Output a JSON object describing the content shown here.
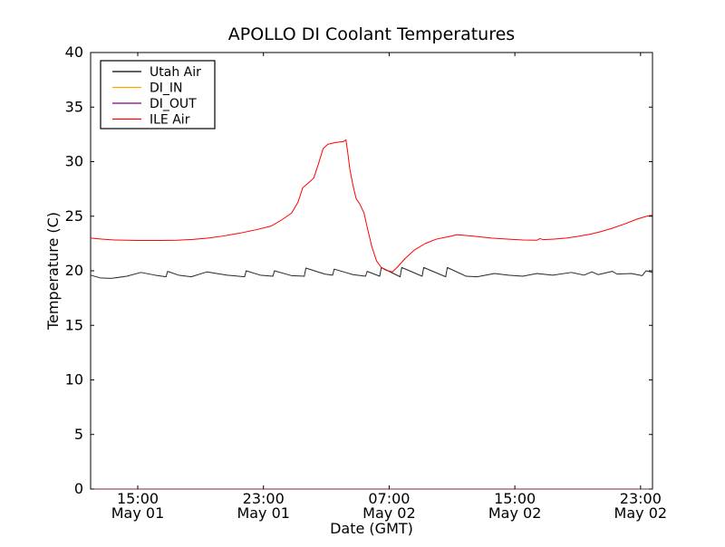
{
  "figure": {
    "background": "#ffffff",
    "frame_color": "#000000"
  },
  "chart_data": {
    "type": "line",
    "title": "APOLLO DI Coolant Temperatures",
    "xlabel": "Date (GMT)",
    "ylabel": "Temperature (C)",
    "grid": false,
    "legend_position": "upper left",
    "ylim": [
      0,
      40
    ],
    "yticks": [
      0,
      5,
      10,
      15,
      20,
      25,
      30,
      35,
      40
    ],
    "x_unit": "hours since May 01 12:00 GMT",
    "xlim": [
      0,
      35.76
    ],
    "xticks": [
      {
        "x": 3,
        "time": "15:00",
        "date": "May 01"
      },
      {
        "x": 11,
        "time": "23:00",
        "date": "May 01"
      },
      {
        "x": 19,
        "time": "07:00",
        "date": "May 02"
      },
      {
        "x": 27,
        "time": "15:00",
        "date": "May 02"
      },
      {
        "x": 35,
        "time": "23:00",
        "date": "May 02"
      }
    ],
    "series": [
      {
        "name": "Utah Air",
        "color": "#000000",
        "opacity": 0.85,
        "points": [
          [
            0,
            19.6
          ],
          [
            0.6,
            19.35
          ],
          [
            1.3,
            19.3
          ],
          [
            2.3,
            19.5
          ],
          [
            3.2,
            19.85
          ],
          [
            4.1,
            19.6
          ],
          [
            4.8,
            19.45
          ],
          [
            4.9,
            19.95
          ],
          [
            5.6,
            19.6
          ],
          [
            6.4,
            19.45
          ],
          [
            7.4,
            19.9
          ],
          [
            8.7,
            19.6
          ],
          [
            9.8,
            19.45
          ],
          [
            9.9,
            20.0
          ],
          [
            10.8,
            19.6
          ],
          [
            11.6,
            19.5
          ],
          [
            11.7,
            20.0
          ],
          [
            12.8,
            19.55
          ],
          [
            13.6,
            19.5
          ],
          [
            13.7,
            20.25
          ],
          [
            14.9,
            19.7
          ],
          [
            15.4,
            19.6
          ],
          [
            15.5,
            20.15
          ],
          [
            16.7,
            19.65
          ],
          [
            17.5,
            19.5
          ],
          [
            17.6,
            19.95
          ],
          [
            18.4,
            19.5
          ],
          [
            18.5,
            20.3
          ],
          [
            19.7,
            19.45
          ],
          [
            19.8,
            20.3
          ],
          [
            21.1,
            19.5
          ],
          [
            21.2,
            20.3
          ],
          [
            22.6,
            19.45
          ],
          [
            22.7,
            20.3
          ],
          [
            23.9,
            19.5
          ],
          [
            24.6,
            19.45
          ],
          [
            25.7,
            19.75
          ],
          [
            26.6,
            19.6
          ],
          [
            27.5,
            19.5
          ],
          [
            28.4,
            19.75
          ],
          [
            29.4,
            19.6
          ],
          [
            30.6,
            19.85
          ],
          [
            31.4,
            19.6
          ],
          [
            31.9,
            19.9
          ],
          [
            32.3,
            19.65
          ],
          [
            33.2,
            19.95
          ],
          [
            33.5,
            19.7
          ],
          [
            34.4,
            19.75
          ],
          [
            35.1,
            19.55
          ],
          [
            35.35,
            20.0
          ],
          [
            35.76,
            19.85
          ]
        ]
      },
      {
        "name": "DI_IN",
        "color": "#ffa500",
        "opacity": 0.45,
        "points": [
          [
            0,
            0
          ],
          [
            35.76,
            0
          ]
        ]
      },
      {
        "name": "DI_OUT",
        "color": "#800080",
        "opacity": 0.45,
        "points": [
          [
            0,
            0
          ],
          [
            35.76,
            0
          ]
        ]
      },
      {
        "name": "ILE Air",
        "color": "#ff0000",
        "opacity": 1,
        "points": [
          [
            0,
            23.0
          ],
          [
            0.7,
            22.9
          ],
          [
            1.5,
            22.82
          ],
          [
            3,
            22.78
          ],
          [
            4.5,
            22.78
          ],
          [
            5.5,
            22.8
          ],
          [
            6.5,
            22.87
          ],
          [
            7.5,
            23.0
          ],
          [
            8.5,
            23.2
          ],
          [
            9.5,
            23.45
          ],
          [
            10.5,
            23.75
          ],
          [
            11.5,
            24.1
          ],
          [
            12.2,
            24.7
          ],
          [
            12.8,
            25.3
          ],
          [
            13.2,
            26.3
          ],
          [
            13.5,
            27.6
          ],
          [
            13.9,
            28.1
          ],
          [
            14.2,
            28.5
          ],
          [
            14.5,
            29.8
          ],
          [
            14.8,
            31.2
          ],
          [
            15.1,
            31.6
          ],
          [
            15.6,
            31.75
          ],
          [
            16.1,
            31.85
          ],
          [
            16.25,
            32.0
          ],
          [
            16.35,
            31.0
          ],
          [
            16.5,
            29.3
          ],
          [
            16.7,
            27.8
          ],
          [
            16.9,
            26.6
          ],
          [
            17.1,
            26.2
          ],
          [
            17.4,
            25.3
          ],
          [
            17.6,
            24.0
          ],
          [
            17.9,
            22.2
          ],
          [
            18.2,
            20.9
          ],
          [
            18.5,
            20.3
          ],
          [
            18.8,
            20.05
          ],
          [
            19.2,
            19.9
          ],
          [
            19.5,
            20.3
          ],
          [
            20.0,
            21.1
          ],
          [
            20.6,
            21.9
          ],
          [
            21.3,
            22.5
          ],
          [
            22.0,
            22.9
          ],
          [
            22.7,
            23.1
          ],
          [
            23.3,
            23.3
          ],
          [
            23.8,
            23.25
          ],
          [
            24.5,
            23.15
          ],
          [
            25.5,
            23.0
          ],
          [
            26.5,
            22.9
          ],
          [
            27.5,
            22.82
          ],
          [
            28.4,
            22.8
          ],
          [
            28.6,
            22.95
          ],
          [
            28.8,
            22.85
          ],
          [
            29.5,
            22.9
          ],
          [
            30.3,
            23.0
          ],
          [
            31.0,
            23.15
          ],
          [
            31.8,
            23.35
          ],
          [
            32.5,
            23.6
          ],
          [
            33.2,
            23.9
          ],
          [
            34.0,
            24.3
          ],
          [
            34.8,
            24.75
          ],
          [
            35.4,
            25.0
          ],
          [
            35.76,
            25.1
          ]
        ]
      }
    ]
  }
}
